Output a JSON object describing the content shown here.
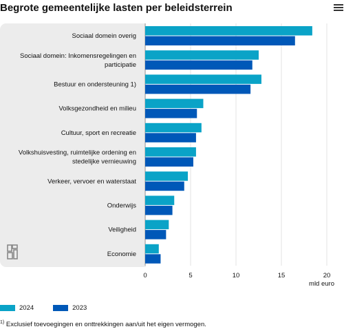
{
  "title": "Begrote gemeentelijke lasten per beleidsterrein",
  "menu_icon": "hamburger-menu-icon",
  "logo_icon": "cbs-logo-icon",
  "colors": {
    "2024": "#0aa3c7",
    "2023": "#0058b8",
    "panel": "#ececec"
  },
  "legend": [
    {
      "label": "2024",
      "color": "#0aa3c7"
    },
    {
      "label": "2023",
      "color": "#0058b8"
    }
  ],
  "footnote": {
    "marker": "1)",
    "text": " Exclusief toevoegingen en onttrekkingen aan/uit het eigen vermogen."
  },
  "chart_data": {
    "type": "bar",
    "orientation": "horizontal",
    "categories": [
      [
        "Sociaal domein overig"
      ],
      [
        "Sociaal domein: Inkomensregelingen en",
        "participatie"
      ],
      [
        "Bestuur en ondersteuning 1)"
      ],
      [
        "Volksgezondheid en milieu"
      ],
      [
        "Cultuur, sport en recreatie"
      ],
      [
        "Volkshuisvesting, ruimtelijke ordening en",
        "stedelijke vernieuwing"
      ],
      [
        "Verkeer, vervoer en waterstaat"
      ],
      [
        "Onderwijs"
      ],
      [
        "Veiligheid"
      ],
      [
        "Economie"
      ]
    ],
    "series": [
      {
        "name": "2024",
        "values": [
          18.4,
          12.5,
          12.8,
          6.4,
          6.2,
          5.6,
          4.7,
          3.2,
          2.6,
          1.5
        ]
      },
      {
        "name": "2023",
        "values": [
          16.5,
          11.8,
          11.6,
          5.7,
          5.6,
          5.3,
          4.3,
          3.0,
          2.3,
          1.7
        ]
      }
    ],
    "xticks": [
      0,
      5,
      10,
      15,
      20
    ],
    "xlim": [
      0,
      20
    ],
    "xlabel": "mld euro",
    "ylabel": "",
    "grid": "vertical"
  }
}
